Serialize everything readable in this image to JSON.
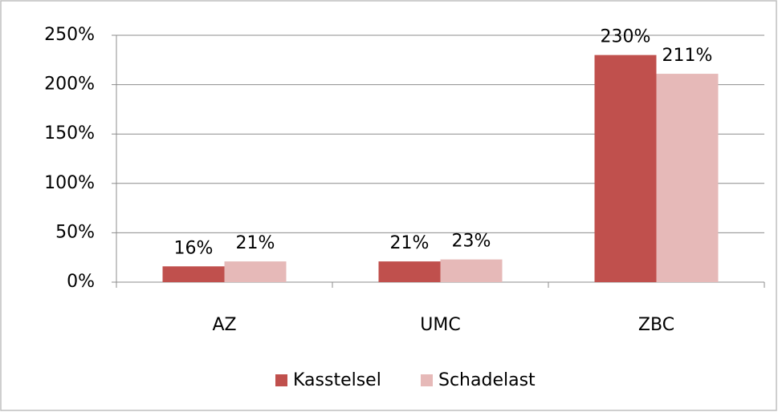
{
  "chart_data": {
    "type": "bar",
    "categories": [
      "AZ",
      "UMC",
      "ZBC"
    ],
    "series": [
      {
        "name": "Kasstelsel",
        "color": "#c0504d",
        "values": [
          16,
          21,
          230
        ],
        "value_labels": [
          "16%",
          "21%",
          "230%"
        ]
      },
      {
        "name": "Schadelast",
        "color": "#e6b9b8",
        "values": [
          21,
          23,
          211
        ],
        "value_labels": [
          "21%",
          "23%",
          "211%"
        ]
      }
    ],
    "ylim": [
      0,
      250
    ],
    "yticks": [
      {
        "value": 0,
        "label": "0%"
      },
      {
        "value": 50,
        "label": "50%"
      },
      {
        "value": 100,
        "label": "100%"
      },
      {
        "value": 150,
        "label": "150%"
      },
      {
        "value": 200,
        "label": "200%"
      },
      {
        "value": 250,
        "label": "250%"
      }
    ],
    "grid": true,
    "legend": "bottom"
  }
}
